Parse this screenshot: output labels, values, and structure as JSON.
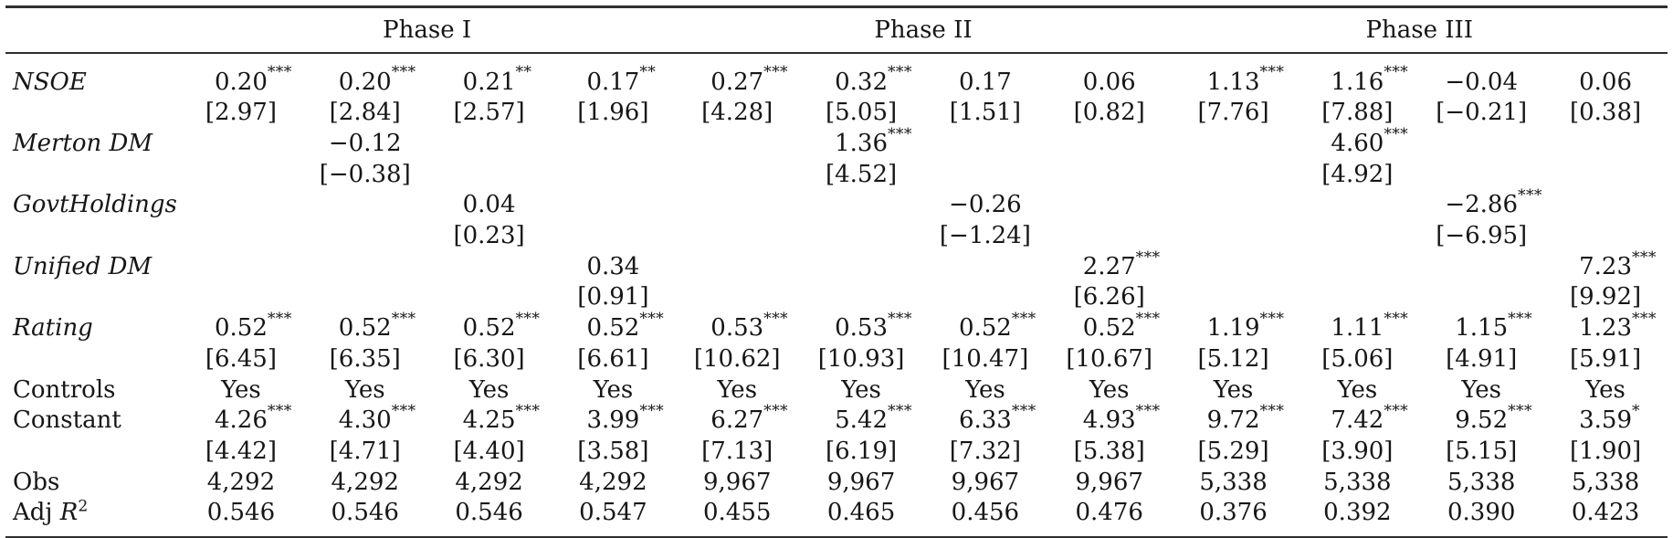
{
  "colors": {
    "text": "#161616",
    "rule": "#2e2e2e",
    "background": "#ffffff"
  },
  "table": {
    "phase_headers": [
      {
        "label": "Phase I",
        "span": 4
      },
      {
        "label": "Phase II",
        "span": 4
      },
      {
        "label": "Phase III",
        "span": 4
      }
    ],
    "rows": [
      {
        "label": "NSOE",
        "italic": true,
        "coefs": [
          "0.20***",
          "0.20***",
          "0.21**",
          "0.17**",
          "0.27***",
          "0.32***",
          "0.17",
          "0.06",
          "1.13***",
          "1.16***",
          "−0.04",
          "0.06"
        ],
        "tstats": [
          "[2.97]",
          "[2.84]",
          "[2.57]",
          "[1.96]",
          "[4.28]",
          "[5.05]",
          "[1.51]",
          "[0.82]",
          "[7.76]",
          "[7.88]",
          "[−0.21]",
          "[0.38]"
        ]
      },
      {
        "label": "Merton DM",
        "italic": true,
        "coefs": [
          "",
          "−0.12",
          "",
          "",
          "",
          "1.36***",
          "",
          "",
          "",
          "4.60***",
          "",
          ""
        ],
        "tstats": [
          "",
          "[−0.38]",
          "",
          "",
          "",
          "[4.52]",
          "",
          "",
          "",
          "[4.92]",
          "",
          ""
        ]
      },
      {
        "label": "GovtHoldings",
        "italic": true,
        "coefs": [
          "",
          "",
          "0.04",
          "",
          "",
          "",
          "−0.26",
          "",
          "",
          "",
          "−2.86***",
          ""
        ],
        "tstats": [
          "",
          "",
          "[0.23]",
          "",
          "",
          "",
          "[−1.24]",
          "",
          "",
          "",
          "[−6.95]",
          ""
        ]
      },
      {
        "label": "Unified DM",
        "italic": true,
        "coefs": [
          "",
          "",
          "",
          "0.34",
          "",
          "",
          "",
          "2.27***",
          "",
          "",
          "",
          "7.23***"
        ],
        "tstats": [
          "",
          "",
          "",
          "[0.91]",
          "",
          "",
          "",
          "[6.26]",
          "",
          "",
          "",
          "[9.92]"
        ]
      },
      {
        "label": "Rating",
        "italic": true,
        "coefs": [
          "0.52***",
          "0.52***",
          "0.52***",
          "0.52***",
          "0.53***",
          "0.53***",
          "0.52***",
          "0.52***",
          "1.19***",
          "1.11***",
          "1.15***",
          "1.23***"
        ],
        "tstats": [
          "[6.45]",
          "[6.35]",
          "[6.30]",
          "[6.61]",
          "[10.62]",
          "[10.93]",
          "[10.47]",
          "[10.67]",
          "[5.12]",
          "[5.06]",
          "[4.91]",
          "[5.91]"
        ]
      },
      {
        "label": "Controls",
        "italic": false,
        "coefs": [
          "Yes",
          "Yes",
          "Yes",
          "Yes",
          "Yes",
          "Yes",
          "Yes",
          "Yes",
          "Yes",
          "Yes",
          "Yes",
          "Yes"
        ]
      },
      {
        "label": "Constant",
        "italic": false,
        "coefs": [
          "4.26***",
          "4.30***",
          "4.25***",
          "3.99***",
          "6.27***",
          "5.42***",
          "6.33***",
          "4.93***",
          "9.72***",
          "7.42***",
          "9.52***",
          "3.59*"
        ],
        "tstats": [
          "[4.42]",
          "[4.71]",
          "[4.40]",
          "[3.58]",
          "[7.13]",
          "[6.19]",
          "[7.32]",
          "[5.38]",
          "[5.29]",
          "[3.90]",
          "[5.15]",
          "[1.90]"
        ]
      },
      {
        "label": "Obs",
        "italic": false,
        "coefs": [
          "4,292",
          "4,292",
          "4,292",
          "4,292",
          "9,967",
          "9,967",
          "9,967",
          "9,967",
          "5,338",
          "5,338",
          "5,338",
          "5,338"
        ]
      },
      {
        "label": "Adj ",
        "label_var": "R",
        "label_sup": "2",
        "italic": false,
        "coefs": [
          "0.546",
          "0.546",
          "0.546",
          "0.547",
          "0.455",
          "0.465",
          "0.456",
          "0.476",
          "0.376",
          "0.392",
          "0.390",
          "0.423"
        ]
      }
    ]
  }
}
